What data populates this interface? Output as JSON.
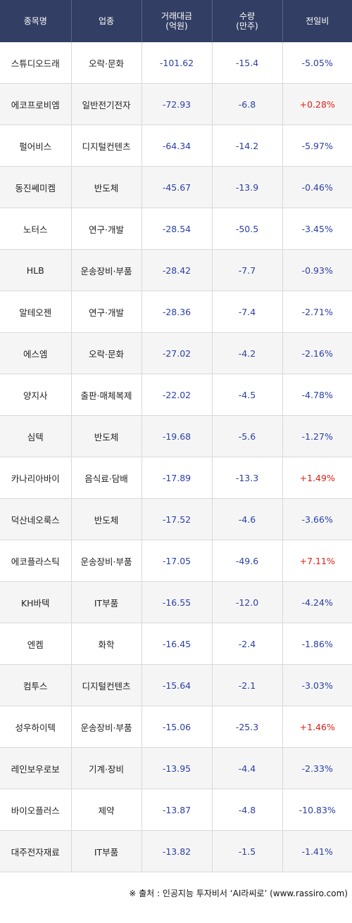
{
  "columns": [
    "종목명",
    "업종",
    "거래대금\n(억원)",
    "수량\n(만주)",
    "전일비"
  ],
  "rows": [
    {
      "name": "스튜디오드래",
      "sector": "오락·문화",
      "amount": "-101.62",
      "qty": "-15.4",
      "change": "-5.05%",
      "up": false
    },
    {
      "name": "에코프로비엠",
      "sector": "일반전기전자",
      "amount": "-72.93",
      "qty": "-6.8",
      "change": "+0.28%",
      "up": true
    },
    {
      "name": "펄어비스",
      "sector": "디지털컨텐츠",
      "amount": "-64.34",
      "qty": "-14.2",
      "change": "-5.97%",
      "up": false
    },
    {
      "name": "동진쎄미켐",
      "sector": "반도체",
      "amount": "-45.67",
      "qty": "-13.9",
      "change": "-0.46%",
      "up": false
    },
    {
      "name": "노터스",
      "sector": "연구·개발",
      "amount": "-28.54",
      "qty": "-50.5",
      "change": "-3.45%",
      "up": false
    },
    {
      "name": "HLB",
      "sector": "운송장비·부품",
      "amount": "-28.42",
      "qty": "-7.7",
      "change": "-0.93%",
      "up": false
    },
    {
      "name": "알테오젠",
      "sector": "연구·개발",
      "amount": "-28.36",
      "qty": "-7.4",
      "change": "-2.71%",
      "up": false
    },
    {
      "name": "에스엠",
      "sector": "오락·문화",
      "amount": "-27.02",
      "qty": "-4.2",
      "change": "-2.16%",
      "up": false
    },
    {
      "name": "양지사",
      "sector": "출판·매체복제",
      "amount": "-22.02",
      "qty": "-4.5",
      "change": "-4.78%",
      "up": false
    },
    {
      "name": "심텍",
      "sector": "반도체",
      "amount": "-19.68",
      "qty": "-5.6",
      "change": "-1.27%",
      "up": false
    },
    {
      "name": "카나리아바이",
      "sector": "음식료·담배",
      "amount": "-17.89",
      "qty": "-13.3",
      "change": "+1.49%",
      "up": true
    },
    {
      "name": "덕산네오룩스",
      "sector": "반도체",
      "amount": "-17.52",
      "qty": "-4.6",
      "change": "-3.66%",
      "up": false
    },
    {
      "name": "에코플라스틱",
      "sector": "운송장비·부품",
      "amount": "-17.05",
      "qty": "-49.6",
      "change": "+7.11%",
      "up": true
    },
    {
      "name": "KH바텍",
      "sector": "IT부품",
      "amount": "-16.55",
      "qty": "-12.0",
      "change": "-4.24%",
      "up": false
    },
    {
      "name": "엔켐",
      "sector": "화학",
      "amount": "-16.45",
      "qty": "-2.4",
      "change": "-1.86%",
      "up": false
    },
    {
      "name": "컴투스",
      "sector": "디지털컨텐츠",
      "amount": "-15.64",
      "qty": "-2.1",
      "change": "-3.03%",
      "up": false
    },
    {
      "name": "성우하이텍",
      "sector": "운송장비·부품",
      "amount": "-15.06",
      "qty": "-25.3",
      "change": "+1.46%",
      "up": true
    },
    {
      "name": "레인보우로보",
      "sector": "기계·장비",
      "amount": "-13.95",
      "qty": "-4.4",
      "change": "-2.33%",
      "up": false
    },
    {
      "name": "바이오플러스",
      "sector": "제약",
      "amount": "-13.87",
      "qty": "-4.8",
      "change": "-10.83%",
      "up": false
    },
    {
      "name": "대주전자재료",
      "sector": "IT부품",
      "amount": "-13.82",
      "qty": "-1.5",
      "change": "-1.41%",
      "up": false
    }
  ],
  "footer": "※ 출처 : 인공지능 투자비서 ‘AI라씨로’ (www.rassiro.com)",
  "colors": {
    "header_bg": "#323e63",
    "up": "#e0201b",
    "down": "#2a3fa6"
  }
}
